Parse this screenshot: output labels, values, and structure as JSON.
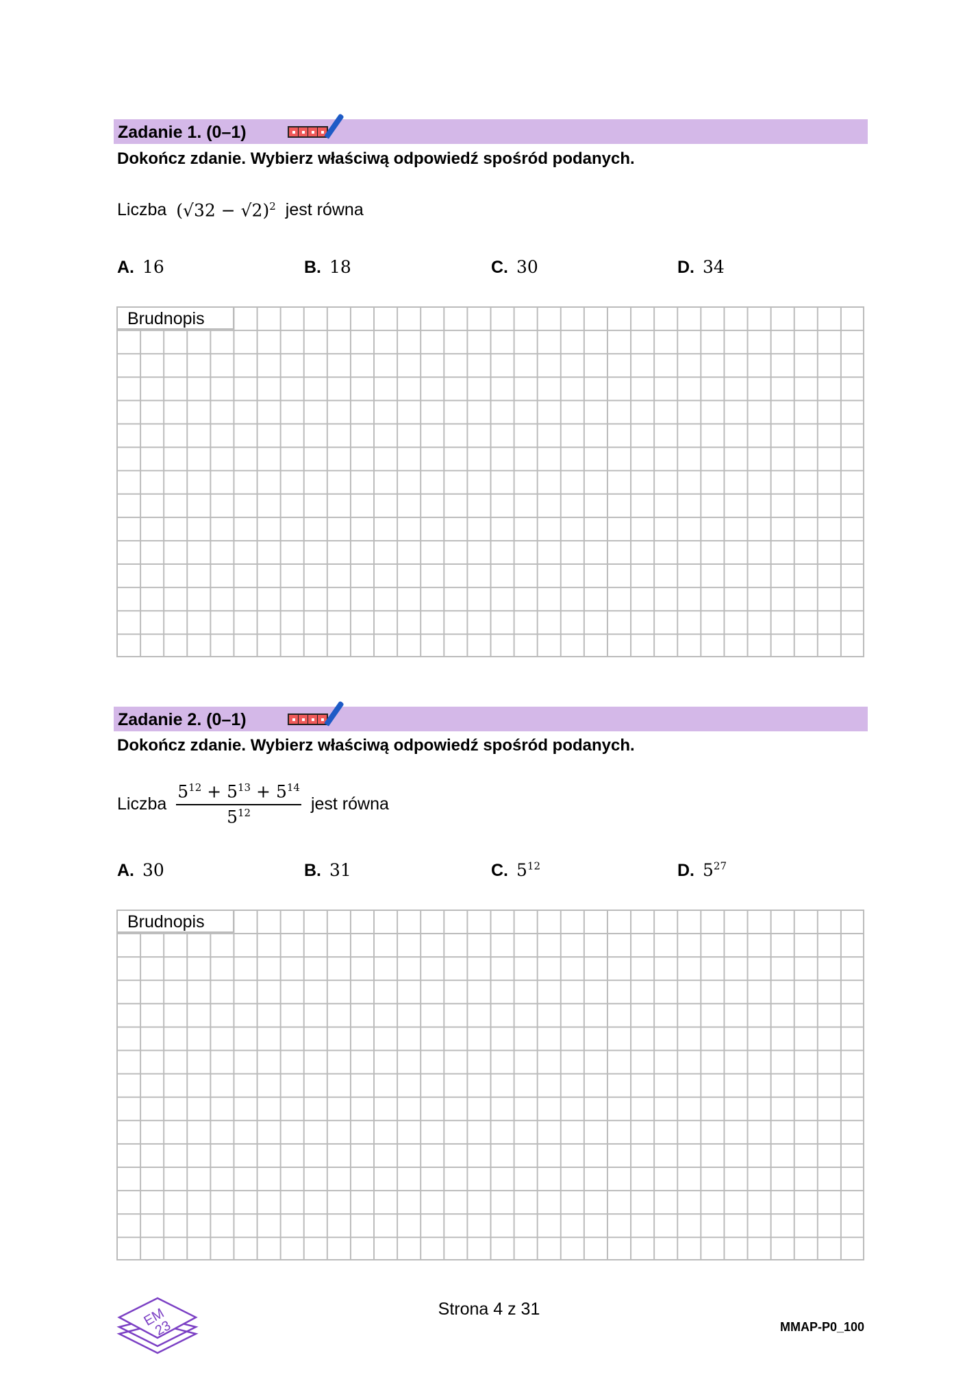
{
  "tasks": [
    {
      "title": "Zadanie 1. (0–1)",
      "instruction": "Dokończ zdanie. Wybierz właściwą odpowiedź spośród podanych.",
      "stem_prefix": "Liczba",
      "stem_suffix": "jest równa",
      "expression": {
        "open": "(",
        "a": "√32",
        "minus": " − ",
        "b": "√2",
        "close": ")",
        "exp": "2"
      },
      "options": [
        {
          "letter": "A.",
          "value": "16"
        },
        {
          "letter": "B.",
          "value": "18"
        },
        {
          "letter": "C.",
          "value": "30"
        },
        {
          "letter": "D.",
          "value": "34"
        }
      ],
      "draft_label": "Brudnopis"
    },
    {
      "title": "Zadanie 2. (0–1)",
      "instruction": "Dokończ zdanie. Wybierz właściwą odpowiedź spośród podanych.",
      "stem_prefix": "Liczba",
      "stem_suffix": "jest równa",
      "expression": {
        "base": "5",
        "e1": "12",
        "e2": "13",
        "e3": "14",
        "plus": " + ",
        "den_exp": "12"
      },
      "options": [
        {
          "letter": "A.",
          "value": "30"
        },
        {
          "letter": "B.",
          "value": "31"
        },
        {
          "letter": "C.",
          "value": "5",
          "exp": "12"
        },
        {
          "letter": "D.",
          "value": "5",
          "exp": "27"
        }
      ],
      "draft_label": "Brudnopis"
    }
  ],
  "footer": {
    "page": "Strona 4 z 31",
    "code": "MMAP-P0_100",
    "logo_text": "EM 23"
  },
  "colors": {
    "header_bar": "#d4b8e8",
    "logo": "#7b3fc4",
    "score_box": "#ef5a5a",
    "pen": "#1e5bc6"
  }
}
